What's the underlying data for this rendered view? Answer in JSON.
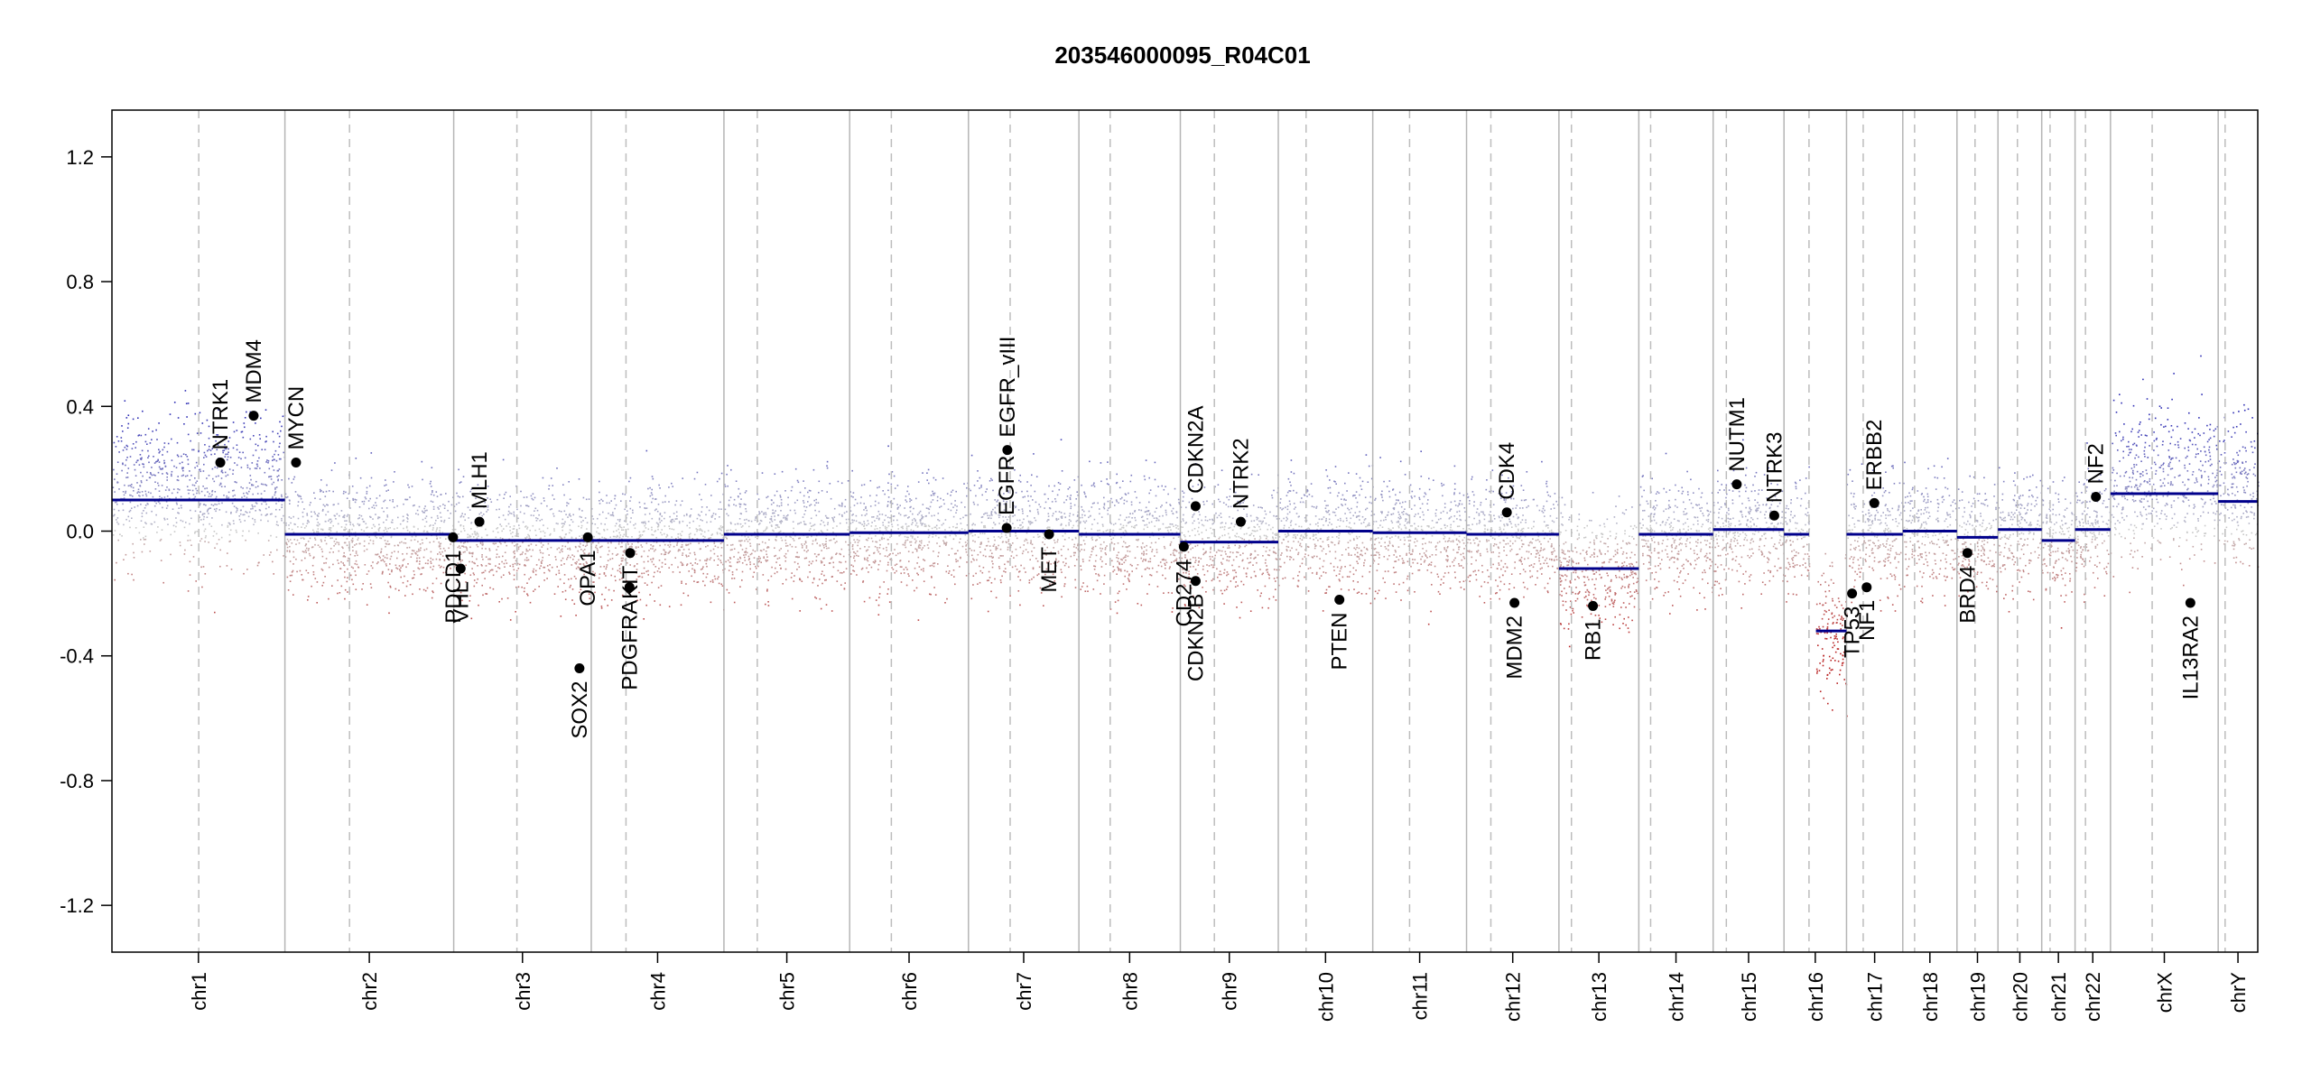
{
  "chart_data": {
    "type": "scatter",
    "title": "203546000095_R04C01",
    "xlabel": "",
    "ylabel": "",
    "ylim": [
      -1.35,
      1.35
    ],
    "y_ticks": [
      {
        "value": 1.2,
        "label": "1.2"
      },
      {
        "value": 0.8,
        "label": "0.8"
      },
      {
        "value": 0.4,
        "label": "0.4"
      },
      {
        "value": 0.0,
        "label": "0.0"
      },
      {
        "value": -0.4,
        "label": "-0.4"
      },
      {
        "value": -0.8,
        "label": "-0.8"
      },
      {
        "value": -1.2,
        "label": "-1.2"
      }
    ],
    "grid": false,
    "legend": "none",
    "colors": {
      "gain": "#2f2fb0",
      "loss": "#b02a2a",
      "neutral": "#9a9a9a",
      "segment": "#00008b",
      "gene_point": "#000000",
      "chrom_line": "#b5b5b5",
      "centromere_line": "#bdbdbd"
    },
    "chromosomes": [
      {
        "name": "chr1",
        "size": 249,
        "centromere": 125,
        "segment": 0.1
      },
      {
        "name": "chr2",
        "size": 243,
        "centromere": 93,
        "segment": -0.01
      },
      {
        "name": "chr3",
        "size": 198,
        "centromere": 91,
        "segment": -0.03
      },
      {
        "name": "chr4",
        "size": 191,
        "centromere": 50,
        "segment": -0.03
      },
      {
        "name": "chr5",
        "size": 181,
        "centromere": 48,
        "segment": -0.01
      },
      {
        "name": "chr6",
        "size": 171,
        "centromere": 60,
        "segment": -0.005
      },
      {
        "name": "chr7",
        "size": 159,
        "centromere": 60,
        "segment": 0.0
      },
      {
        "name": "chr8",
        "size": 146,
        "centromere": 45,
        "segment": -0.01
      },
      {
        "name": "chr9",
        "size": 141,
        "centromere": 49,
        "segment": -0.035
      },
      {
        "name": "chr10",
        "size": 136,
        "centromere": 40,
        "segment": 0.0
      },
      {
        "name": "chr11",
        "size": 135,
        "centromere": 53,
        "segment": -0.005
      },
      {
        "name": "chr12",
        "size": 133,
        "centromere": 35,
        "segment": -0.01
      },
      {
        "name": "chr13",
        "size": 115,
        "centromere": 18,
        "segment": -0.12
      },
      {
        "name": "chr14",
        "size": 107,
        "centromere": 17,
        "segment": -0.01
      },
      {
        "name": "chr15",
        "size": 102,
        "centromere": 19,
        "segment": 0.005
      },
      {
        "name": "chr16",
        "size": 90,
        "centromere": 36,
        "segment": -0.01,
        "segments": [
          {
            "start": 0,
            "end": 36,
            "value": -0.01
          },
          {
            "start": 46,
            "end": 90,
            "value": -0.32
          }
        ]
      },
      {
        "name": "chr17",
        "size": 81,
        "centromere": 24,
        "segment": -0.01
      },
      {
        "name": "chr18",
        "size": 78,
        "centromere": 17,
        "segment": 0.0
      },
      {
        "name": "chr19",
        "size": 59,
        "centromere": 26,
        "segment": -0.02
      },
      {
        "name": "chr20",
        "size": 63,
        "centromere": 28,
        "segment": 0.005
      },
      {
        "name": "chr21",
        "size": 48,
        "centromere": 12,
        "segment": -0.03
      },
      {
        "name": "chr22",
        "size": 51,
        "centromere": 15,
        "segment": 0.005
      },
      {
        "name": "chrX",
        "size": 155,
        "centromere": 60,
        "segment": 0.12
      },
      {
        "name": "chrY",
        "size": 57,
        "centromere": 10,
        "segment": 0.095
      }
    ],
    "genes": [
      {
        "name": "NTRK1",
        "chr": "chr1",
        "pos": 156,
        "value": 0.22,
        "label_side": "above"
      },
      {
        "name": "MDM4",
        "chr": "chr1",
        "pos": 204,
        "value": 0.37,
        "label_side": "above"
      },
      {
        "name": "MYCN",
        "chr": "chr2",
        "pos": 16,
        "value": 0.22,
        "label_side": "above"
      },
      {
        "name": "PDCD1",
        "chr": "chr2",
        "pos": 242,
        "value": -0.02,
        "label_side": "below"
      },
      {
        "name": "VHL",
        "chr": "chr3",
        "pos": 10,
        "value": -0.12,
        "label_side": "below"
      },
      {
        "name": "MLH1",
        "chr": "chr3",
        "pos": 37,
        "value": 0.03,
        "label_side": "above"
      },
      {
        "name": "SOX2",
        "chr": "chr3",
        "pos": 181,
        "value": -0.44,
        "label_side": "below"
      },
      {
        "name": "OPA1",
        "chr": "chr3",
        "pos": 193,
        "value": -0.02,
        "label_side": "below"
      },
      {
        "name": "PDGFRA",
        "chr": "chr4",
        "pos": 55,
        "value": -0.18,
        "label_side": "below"
      },
      {
        "name": "KIT",
        "chr": "chr4",
        "pos": 56,
        "value": -0.07,
        "label_side": "below"
      },
      {
        "name": "EGFR",
        "chr": "chr7",
        "pos": 55,
        "value": 0.01,
        "label_side": "above"
      },
      {
        "name": "EGFR_vIII",
        "chr": "chr7",
        "pos": 56,
        "value": 0.26,
        "label_side": "above"
      },
      {
        "name": "MET",
        "chr": "chr7",
        "pos": 116,
        "value": -0.01,
        "label_side": "below"
      },
      {
        "name": "CD274",
        "chr": "chr9",
        "pos": 5,
        "value": -0.05,
        "label_side": "below"
      },
      {
        "name": "CDKN2B",
        "chr": "chr9",
        "pos": 22,
        "value": -0.16,
        "label_side": "below"
      },
      {
        "name": "CDKN2A",
        "chr": "chr9",
        "pos": 22,
        "value": 0.08,
        "label_side": "above"
      },
      {
        "name": "NTRK2",
        "chr": "chr9",
        "pos": 87,
        "value": 0.03,
        "label_side": "above"
      },
      {
        "name": "PTEN",
        "chr": "chr10",
        "pos": 88,
        "value": -0.22,
        "label_side": "below"
      },
      {
        "name": "CDK4",
        "chr": "chr12",
        "pos": 58,
        "value": 0.06,
        "label_side": "above"
      },
      {
        "name": "MDM2",
        "chr": "chr12",
        "pos": 69,
        "value": -0.23,
        "label_side": "below"
      },
      {
        "name": "RB1",
        "chr": "chr13",
        "pos": 49,
        "value": -0.24,
        "label_side": "below"
      },
      {
        "name": "NUTM1",
        "chr": "chr15",
        "pos": 34,
        "value": 0.15,
        "label_side": "above"
      },
      {
        "name": "NTRK3",
        "chr": "chr15",
        "pos": 88,
        "value": 0.05,
        "label_side": "above"
      },
      {
        "name": "TP53",
        "chr": "chr17",
        "pos": 8,
        "value": -0.2,
        "label_side": "below"
      },
      {
        "name": "NF1",
        "chr": "chr17",
        "pos": 29,
        "value": -0.18,
        "label_side": "below"
      },
      {
        "name": "ERBB2",
        "chr": "chr17",
        "pos": 40,
        "value": 0.09,
        "label_side": "above"
      },
      {
        "name": "BRD4",
        "chr": "chr19",
        "pos": 15,
        "value": -0.07,
        "label_side": "below"
      },
      {
        "name": "NF2",
        "chr": "chr22",
        "pos": 30,
        "value": 0.11,
        "label_side": "above"
      },
      {
        "name": "IL13RA2",
        "chr": "chrX",
        "pos": 115,
        "value": -0.23,
        "label_side": "below"
      }
    ]
  }
}
